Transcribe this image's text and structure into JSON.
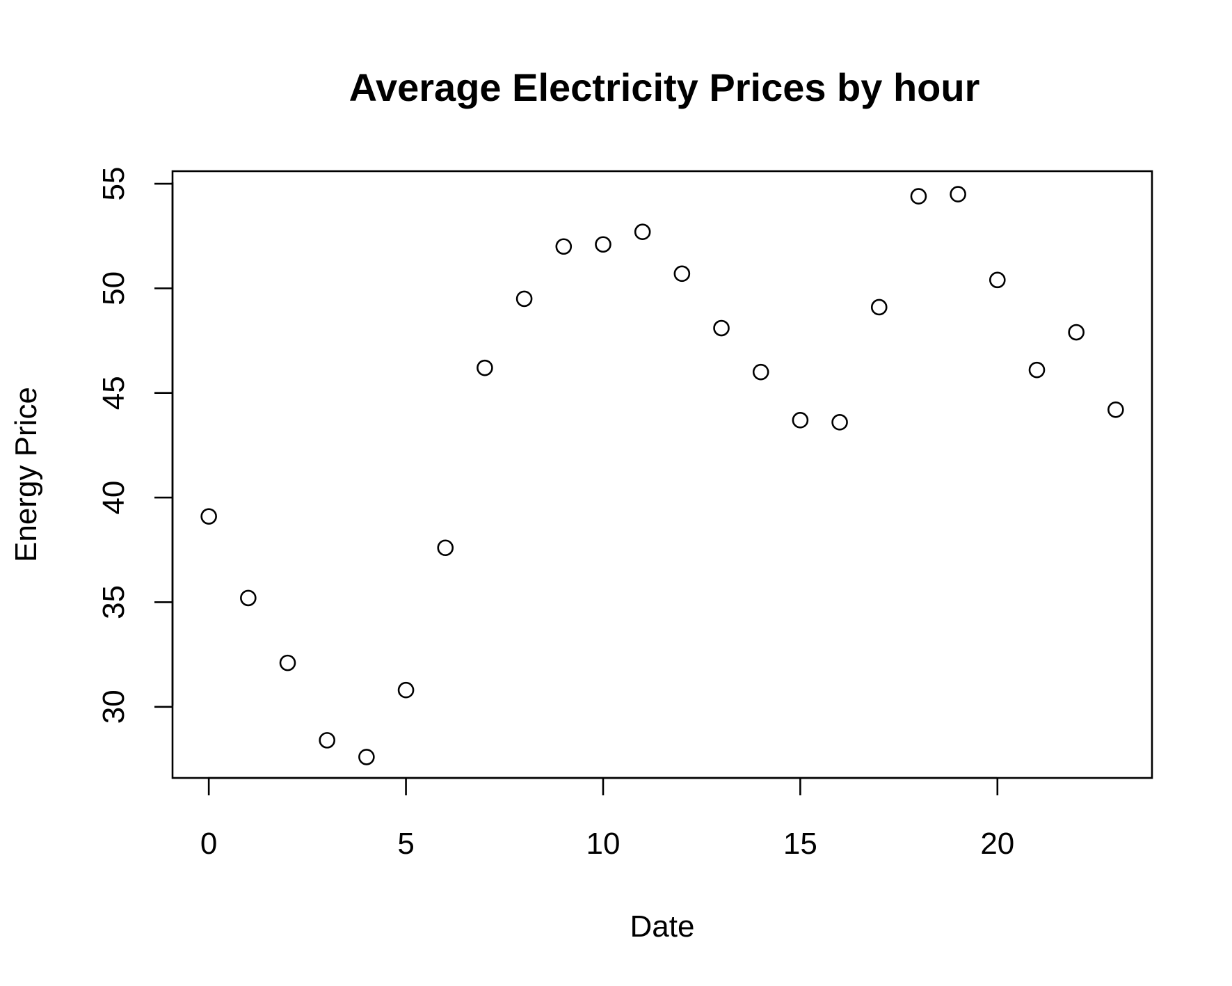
{
  "chart_data": {
    "type": "scatter",
    "title": "Average Electricity Prices by hour",
    "xlabel": "Date",
    "ylabel": "Energy Price",
    "x_ticks": [
      0,
      5,
      10,
      15,
      20
    ],
    "y_ticks": [
      30,
      35,
      40,
      45,
      50,
      55
    ],
    "xlim": [
      -0.92,
      23.92
    ],
    "ylim": [
      26.6,
      55.6
    ],
    "grid": false,
    "legend": "none",
    "marker": "open-circle",
    "colors": {
      "points": "#000000",
      "axes": "#000000",
      "background": "#ffffff"
    },
    "series": [
      {
        "x": [
          0,
          1,
          2,
          3,
          4,
          5,
          6,
          7,
          8,
          9,
          10,
          11,
          12,
          13,
          14,
          15,
          16,
          17,
          18,
          19,
          20,
          21,
          22,
          23
        ],
        "y": [
          39.1,
          35.2,
          32.1,
          28.4,
          27.6,
          30.8,
          37.6,
          46.2,
          49.5,
          52.0,
          52.1,
          52.7,
          50.7,
          48.1,
          46.0,
          43.7,
          43.6,
          49.1,
          54.4,
          54.5,
          50.4,
          46.1,
          47.9,
          44.2
        ]
      }
    ]
  }
}
